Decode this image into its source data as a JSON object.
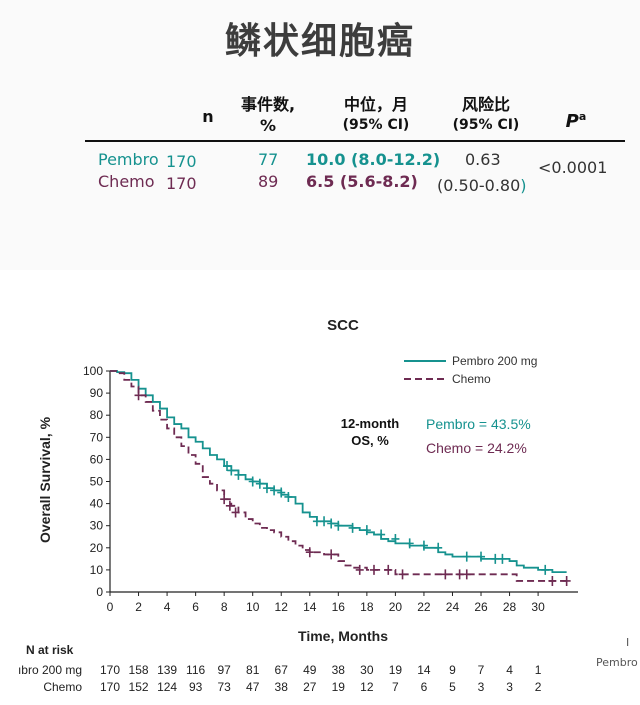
{
  "title": "鳞状细胞癌",
  "table": {
    "headers": {
      "n": "n",
      "events_1": "事件数,",
      "events_2": "%",
      "median_1": "中位，月",
      "median_2": "(95% CI)",
      "hr_1": "风险比",
      "hr_2": "(95% CI)",
      "p_main": "P",
      "p_sup": "a"
    },
    "rows": [
      {
        "arm": "Pembro",
        "n": "170",
        "events": "77",
        "median": "10.0 (8.0-12.2)",
        "hr": "0.63",
        "p": "<0.0001"
      },
      {
        "arm": "Chemo",
        "n": "170",
        "events": "89",
        "median": "6.5 (5.6-8.2)",
        "hr_ci_open": "(0.50-0.80",
        "hr_ci_close": ")"
      }
    ]
  },
  "colors": {
    "pembro": "#16928f",
    "chemo": "#6e2b52"
  },
  "chart_data": {
    "type": "line",
    "title": "SCC",
    "xlabel": "Time, Months",
    "ylabel": "Overall Survival, %",
    "xlim": [
      0,
      33
    ],
    "ylim": [
      0,
      100
    ],
    "xticks": [
      0,
      2,
      4,
      6,
      8,
      10,
      12,
      14,
      16,
      18,
      20,
      22,
      24,
      26,
      28,
      30
    ],
    "yticks": [
      0,
      10,
      20,
      30,
      40,
      50,
      60,
      70,
      80,
      90,
      100
    ],
    "legend": {
      "position": "top-right",
      "entries": [
        "Pembro 200 mg",
        "Chemo"
      ]
    },
    "annotation": {
      "label_1": "12-month",
      "label_2": "OS, %",
      "pembro": "Pembro = 43.5%",
      "chemo": "Chemo = 24.2%"
    },
    "series": [
      {
        "name": "Pembro 200 mg",
        "color": "#16928f",
        "style": "solid",
        "points": [
          [
            0,
            100
          ],
          [
            0.5,
            99.5
          ],
          [
            1,
            99
          ],
          [
            1.5,
            96
          ],
          [
            2,
            92
          ],
          [
            2.5,
            89
          ],
          [
            3,
            86
          ],
          [
            3.5,
            83
          ],
          [
            4,
            79
          ],
          [
            4.5,
            76
          ],
          [
            5,
            74
          ],
          [
            5.5,
            70
          ],
          [
            6,
            68
          ],
          [
            6.5,
            65
          ],
          [
            7,
            62
          ],
          [
            7.5,
            60
          ],
          [
            8,
            57
          ],
          [
            8.5,
            55
          ],
          [
            9,
            53
          ],
          [
            9.5,
            51
          ],
          [
            10,
            50
          ],
          [
            10.5,
            49
          ],
          [
            11,
            47
          ],
          [
            11.5,
            46
          ],
          [
            12,
            44
          ],
          [
            12.5,
            43
          ],
          [
            13,
            40
          ],
          [
            13.5,
            36
          ],
          [
            14,
            34
          ],
          [
            14.5,
            32
          ],
          [
            15,
            32
          ],
          [
            15.5,
            31
          ],
          [
            16,
            30
          ],
          [
            17,
            29
          ],
          [
            17.5,
            28
          ],
          [
            18,
            27
          ],
          [
            18.5,
            26
          ],
          [
            19,
            24
          ],
          [
            19.5,
            23
          ],
          [
            20,
            22
          ],
          [
            21,
            21
          ],
          [
            22,
            20
          ],
          [
            23,
            18
          ],
          [
            23.5,
            17
          ],
          [
            24,
            16
          ],
          [
            25,
            16
          ],
          [
            26,
            15
          ],
          [
            27,
            15
          ],
          [
            28,
            14
          ],
          [
            28.5,
            12
          ],
          [
            29,
            11
          ],
          [
            30,
            10
          ],
          [
            31,
            9
          ],
          [
            32,
            9
          ]
        ],
        "censor": [
          [
            8.2,
            57
          ],
          [
            8.5,
            55
          ],
          [
            9,
            53
          ],
          [
            10,
            50
          ],
          [
            10.5,
            49
          ],
          [
            11,
            47
          ],
          [
            11.5,
            46
          ],
          [
            12,
            45
          ],
          [
            12.5,
            43
          ],
          [
            14.5,
            32
          ],
          [
            15,
            32
          ],
          [
            15.5,
            31
          ],
          [
            16,
            30
          ],
          [
            17,
            29
          ],
          [
            18,
            28
          ],
          [
            19,
            26
          ],
          [
            20,
            24
          ],
          [
            21,
            22
          ],
          [
            22,
            21
          ],
          [
            23,
            20
          ],
          [
            25,
            16
          ],
          [
            26,
            16
          ],
          [
            27,
            15
          ],
          [
            27.5,
            15
          ],
          [
            30.5,
            10
          ]
        ]
      },
      {
        "name": "Chemo",
        "color": "#6e2b52",
        "style": "dashed",
        "points": [
          [
            0,
            100
          ],
          [
            0.5,
            99
          ],
          [
            1,
            96
          ],
          [
            1.5,
            93
          ],
          [
            2,
            89
          ],
          [
            2.5,
            86
          ],
          [
            3,
            82
          ],
          [
            3.5,
            78
          ],
          [
            4,
            74
          ],
          [
            4.5,
            70
          ],
          [
            5,
            66
          ],
          [
            5.5,
            62
          ],
          [
            6,
            58
          ],
          [
            6.5,
            52
          ],
          [
            7,
            49
          ],
          [
            7.5,
            46
          ],
          [
            8,
            42
          ],
          [
            8.5,
            39
          ],
          [
            9,
            36
          ],
          [
            9.5,
            33
          ],
          [
            10,
            31
          ],
          [
            10.5,
            29
          ],
          [
            11,
            28
          ],
          [
            11.5,
            27
          ],
          [
            12,
            25
          ],
          [
            12.5,
            23
          ],
          [
            13,
            21
          ],
          [
            13.5,
            19
          ],
          [
            14,
            18
          ],
          [
            15,
            17
          ],
          [
            16,
            14
          ],
          [
            16.5,
            12
          ],
          [
            17,
            11
          ],
          [
            18,
            10
          ],
          [
            19,
            10
          ],
          [
            20,
            8
          ],
          [
            21,
            8
          ],
          [
            22,
            8
          ],
          [
            24,
            8
          ],
          [
            25,
            8
          ],
          [
            26,
            8
          ],
          [
            28,
            8
          ],
          [
            28.5,
            5
          ],
          [
            30,
            5
          ],
          [
            32,
            5
          ]
        ],
        "censor": [
          [
            2,
            89
          ],
          [
            8,
            42
          ],
          [
            8.4,
            39
          ],
          [
            8.8,
            36
          ],
          [
            14,
            18
          ],
          [
            15.5,
            17
          ],
          [
            17.5,
            10
          ],
          [
            18.5,
            10
          ],
          [
            19.5,
            10
          ],
          [
            20.5,
            8
          ],
          [
            23.5,
            8
          ],
          [
            24.5,
            8
          ],
          [
            25,
            8
          ],
          [
            31,
            5
          ],
          [
            32,
            5
          ]
        ]
      }
    ],
    "at_risk": {
      "label": "N at risk",
      "times": [
        0,
        2,
        4,
        6,
        8,
        10,
        12,
        14,
        16,
        18,
        20,
        22,
        24,
        26,
        28,
        30
      ],
      "rows": [
        {
          "label": "ıbro 200 mg",
          "values": [
            170,
            158,
            139,
            116,
            97,
            81,
            67,
            49,
            38,
            30,
            19,
            14,
            9,
            7,
            4,
            1
          ]
        },
        {
          "label": "Chemo",
          "values": [
            170,
            152,
            124,
            93,
            73,
            47,
            38,
            27,
            19,
            12,
            7,
            6,
            5,
            3,
            3,
            2
          ]
        }
      ]
    }
  },
  "stray": {
    "right_label": "Pembro",
    "right_mark": "I"
  }
}
